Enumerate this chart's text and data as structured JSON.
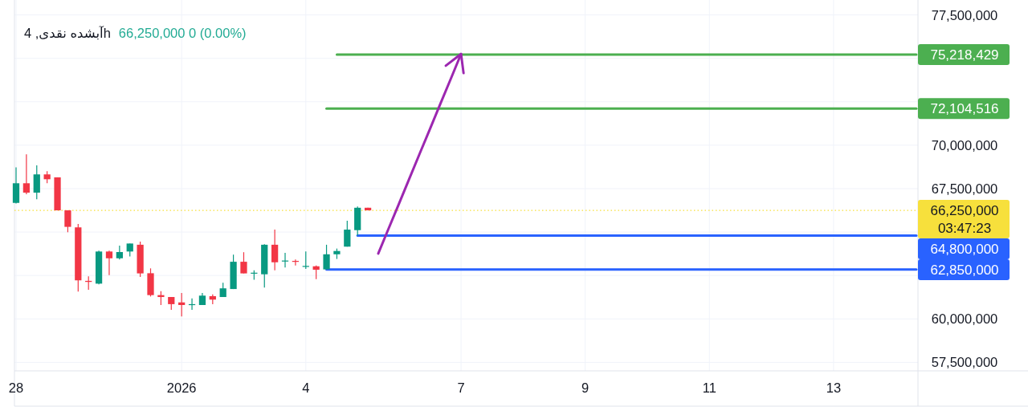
{
  "chart_data": {
    "type": "candlestick",
    "title": "آبشده نقدی, 4h",
    "subtitle": "66,250,000 0 (0.00%)",
    "categories": [
      "28",
      null,
      null,
      null,
      null,
      null,
      null,
      null,
      null,
      null,
      null,
      null,
      null,
      null,
      null,
      null,
      "2026",
      null,
      null,
      null,
      null,
      null,
      null,
      null,
      null,
      null,
      null,
      null,
      "4",
      null,
      null,
      null,
      null,
      null,
      null,
      null,
      null,
      null,
      null,
      null,
      null,
      null,
      null,
      "7",
      null,
      null,
      null,
      null,
      null,
      null,
      null,
      null,
      null,
      null,
      null,
      "9",
      null,
      null,
      null,
      null,
      null,
      null,
      null,
      null,
      null,
      null,
      null,
      "11",
      null,
      null,
      null,
      null,
      null,
      null,
      null,
      null,
      null,
      null,
      null,
      "13",
      null,
      null,
      null,
      null,
      null,
      null,
      null,
      null
    ],
    "ohlc": [
      [
        66680000,
        68730000,
        66650000,
        67810000
      ],
      [
        67810000,
        69470000,
        67180000,
        67270000
      ],
      [
        67270000,
        68840000,
        66890000,
        68320000
      ],
      [
        68320000,
        68500000,
        67810000,
        68040000
      ],
      [
        68150000,
        68150000,
        66250000,
        66250000
      ],
      [
        66250000,
        66250000,
        64990000,
        65300000
      ],
      [
        65270000,
        65470000,
        61570000,
        62220000
      ],
      [
        62190000,
        62450000,
        61680000,
        62130000
      ],
      [
        62030000,
        63930000,
        61990000,
        63880000
      ],
      [
        63880000,
        63930000,
        62520000,
        63490000
      ],
      [
        63490000,
        64220000,
        63420000,
        63850000
      ],
      [
        63880000,
        64340000,
        63600000,
        64340000
      ],
      [
        64270000,
        64450000,
        62420000,
        62620000
      ],
      [
        62630000,
        62910000,
        61290000,
        61370000
      ],
      [
        61370000,
        61600000,
        60800000,
        61260000
      ],
      [
        61260000,
        61260000,
        60520000,
        60850000
      ],
      [
        60950000,
        61490000,
        60140000,
        60800000
      ],
      [
        60810000,
        61180000,
        60520000,
        60850000
      ],
      [
        60800000,
        61490000,
        60800000,
        61340000
      ],
      [
        61310000,
        61410000,
        60850000,
        61110000
      ],
      [
        61260000,
        62080000,
        61260000,
        61760000
      ],
      [
        61720000,
        63700000,
        61720000,
        63290000
      ],
      [
        63290000,
        63840000,
        62620000,
        62620000
      ],
      [
        62620000,
        62800000,
        62260000,
        62660000
      ],
      [
        62570000,
        64300000,
        61800000,
        64270000
      ],
      [
        64270000,
        65140000,
        62800000,
        63260000
      ],
      [
        63320000,
        63800000,
        62960000,
        63360000
      ],
      [
        63340000,
        63420000,
        63080000,
        63290000
      ],
      [
        63020000,
        63880000,
        62880000,
        63050000
      ],
      [
        63030000,
        63080000,
        62290000,
        62830000
      ],
      [
        62850000,
        64270000,
        62850000,
        63720000
      ],
      [
        63720000,
        64050000,
        63450000,
        63910000
      ],
      [
        64160000,
        65650000,
        64160000,
        65140000
      ],
      [
        65110000,
        66470000,
        64800000,
        66400000
      ],
      [
        66400000,
        66400000,
        66250000,
        66250000
      ],
      null,
      null,
      null,
      null,
      null,
      null,
      null,
      null,
      null,
      null,
      null,
      null,
      null,
      null,
      null,
      null,
      null,
      null,
      null,
      null,
      null,
      null,
      null,
      null,
      null,
      null,
      null,
      null,
      null,
      null,
      null,
      null,
      null,
      null,
      null,
      null,
      null,
      null,
      null,
      null,
      null,
      null,
      null,
      null,
      null,
      null,
      null,
      null,
      null,
      null,
      null,
      null,
      null
    ],
    "ylim": [
      57010000,
      78360000
    ],
    "yticks": [
      {
        "value": 57500000,
        "label": "57,500,000"
      },
      {
        "value": 60000000,
        "label": "60,000,000"
      },
      {
        "value": 62500000,
        "label": null
      },
      {
        "value": 65000000,
        "label": null
      },
      {
        "value": 67500000,
        "label": "67,500,000"
      },
      {
        "value": 70000000,
        "label": "70,000,000"
      },
      {
        "value": 72500000,
        "label": null
      },
      {
        "value": 75000000,
        "label": null
      },
      {
        "value": 77500000,
        "label": "77,500,000"
      }
    ],
    "grid": true,
    "ref_lines": [
      {
        "axis": "y",
        "value": 66250000,
        "label": "66,250,000",
        "color": "#f7e03c",
        "line_style": "dotted"
      }
    ],
    "annotations": [
      "03:47:23"
    ],
    "series": [
      {
        "type": "line",
        "color": "#4caf50",
        "values": [
          null,
          null,
          null,
          null,
          null,
          null,
          null,
          null,
          null,
          null,
          null,
          null,
          null,
          null,
          null,
          null,
          null,
          null,
          null,
          null,
          null,
          null,
          null,
          null,
          null,
          null,
          null,
          null,
          null,
          null,
          null,
          75218429,
          75218429,
          75218429,
          75218429,
          75218429,
          75218429,
          75218429,
          75218429,
          75218429,
          75218429,
          75218429,
          75218429,
          75218429,
          75218429,
          75218429,
          75218429,
          75218429,
          75218429,
          75218429,
          75218429,
          75218429,
          75218429,
          75218429,
          75218429,
          75218429,
          75218429,
          75218429,
          75218429,
          75218429,
          75218429,
          75218429,
          75218429,
          75218429,
          75218429,
          75218429,
          75218429,
          75218429,
          75218429,
          75218429,
          75218429,
          75218429,
          75218429,
          75218429,
          75218429,
          75218429,
          75218429,
          75218429,
          75218429,
          75218429,
          75218429,
          75218429,
          75218429,
          75218429,
          75218429,
          75218429,
          75218429,
          75218429
        ],
        "value_labels": [
          null,
          null,
          null,
          null,
          null,
          null,
          null,
          null,
          null,
          null,
          null,
          null,
          null,
          null,
          null,
          null,
          null,
          null,
          null,
          null,
          null,
          null,
          null,
          null,
          null,
          null,
          null,
          null,
          null,
          null,
          null,
          null,
          null,
          null,
          null,
          null,
          null,
          null,
          null,
          null,
          null,
          null,
          null,
          null,
          null,
          null,
          null,
          null,
          null,
          null,
          null,
          null,
          null,
          null,
          null,
          null,
          null,
          null,
          null,
          null,
          null,
          null,
          null,
          null,
          null,
          null,
          null,
          null,
          null,
          null,
          null,
          null,
          null,
          null,
          null,
          null,
          null,
          null,
          null,
          null,
          null,
          null,
          null,
          null,
          null,
          null,
          null,
          "75,218,429"
        ]
      },
      {
        "type": "line",
        "color": "#4caf50",
        "values": [
          null,
          null,
          null,
          null,
          null,
          null,
          null,
          null,
          null,
          null,
          null,
          null,
          null,
          null,
          null,
          null,
          null,
          null,
          null,
          null,
          null,
          null,
          null,
          null,
          null,
          null,
          null,
          null,
          null,
          null,
          72104516,
          72104516,
          72104516,
          72104516,
          72104516,
          72104516,
          72104516,
          72104516,
          72104516,
          72104516,
          72104516,
          72104516,
          72104516,
          72104516,
          72104516,
          72104516,
          72104516,
          72104516,
          72104516,
          72104516,
          72104516,
          72104516,
          72104516,
          72104516,
          72104516,
          72104516,
          72104516,
          72104516,
          72104516,
          72104516,
          72104516,
          72104516,
          72104516,
          72104516,
          72104516,
          72104516,
          72104516,
          72104516,
          72104516,
          72104516,
          72104516,
          72104516,
          72104516,
          72104516,
          72104516,
          72104516,
          72104516,
          72104516,
          72104516,
          72104516,
          72104516,
          72104516,
          72104516,
          72104516,
          72104516,
          72104516,
          72104516,
          72104516
        ],
        "value_labels": [
          null,
          null,
          null,
          null,
          null,
          null,
          null,
          null,
          null,
          null,
          null,
          null,
          null,
          null,
          null,
          null,
          null,
          null,
          null,
          null,
          null,
          null,
          null,
          null,
          null,
          null,
          null,
          null,
          null,
          null,
          null,
          null,
          null,
          null,
          null,
          null,
          null,
          null,
          null,
          null,
          null,
          null,
          null,
          null,
          null,
          null,
          null,
          null,
          null,
          null,
          null,
          null,
          null,
          null,
          null,
          null,
          null,
          null,
          null,
          null,
          null,
          null,
          null,
          null,
          null,
          null,
          null,
          null,
          null,
          null,
          null,
          null,
          null,
          null,
          null,
          null,
          null,
          null,
          null,
          null,
          null,
          null,
          null,
          null,
          null,
          null,
          null,
          "72,104,516"
        ]
      },
      {
        "type": "line",
        "color": "#2962ff",
        "values": [
          null,
          null,
          null,
          null,
          null,
          null,
          null,
          null,
          null,
          null,
          null,
          null,
          null,
          null,
          null,
          null,
          null,
          null,
          null,
          null,
          null,
          null,
          null,
          null,
          null,
          null,
          null,
          null,
          null,
          null,
          null,
          null,
          null,
          64800000,
          64800000,
          64800000,
          64800000,
          64800000,
          64800000,
          64800000,
          64800000,
          64800000,
          64800000,
          64800000,
          64800000,
          64800000,
          64800000,
          64800000,
          64800000,
          64800000,
          64800000,
          64800000,
          64800000,
          64800000,
          64800000,
          64800000,
          64800000,
          64800000,
          64800000,
          64800000,
          64800000,
          64800000,
          64800000,
          64800000,
          64800000,
          64800000,
          64800000,
          64800000,
          64800000,
          64800000,
          64800000,
          64800000,
          64800000,
          64800000,
          64800000,
          64800000,
          64800000,
          64800000,
          64800000,
          64800000,
          64800000,
          64800000,
          64800000,
          64800000,
          64800000,
          64800000,
          64800000,
          64800000
        ],
        "value_labels": [
          null,
          null,
          null,
          null,
          null,
          null,
          null,
          null,
          null,
          null,
          null,
          null,
          null,
          null,
          null,
          null,
          null,
          null,
          null,
          null,
          null,
          null,
          null,
          null,
          null,
          null,
          null,
          null,
          null,
          null,
          null,
          null,
          null,
          null,
          null,
          null,
          null,
          null,
          null,
          null,
          null,
          null,
          null,
          null,
          null,
          null,
          null,
          null,
          null,
          null,
          null,
          null,
          null,
          null,
          null,
          null,
          null,
          null,
          null,
          null,
          null,
          null,
          null,
          null,
          null,
          null,
          null,
          null,
          null,
          null,
          null,
          null,
          null,
          null,
          null,
          null,
          null,
          null,
          null,
          null,
          null,
          null,
          null,
          null,
          null,
          null,
          null,
          "64,800,000"
        ]
      },
      {
        "type": "line",
        "color": "#2962ff",
        "values": [
          null,
          null,
          null,
          null,
          null,
          null,
          null,
          null,
          null,
          null,
          null,
          null,
          null,
          null,
          null,
          null,
          null,
          null,
          null,
          null,
          null,
          null,
          null,
          null,
          null,
          null,
          null,
          null,
          null,
          null,
          62850000,
          62850000,
          62850000,
          62850000,
          62850000,
          62850000,
          62850000,
          62850000,
          62850000,
          62850000,
          62850000,
          62850000,
          62850000,
          62850000,
          62850000,
          62850000,
          62850000,
          62850000,
          62850000,
          62850000,
          62850000,
          62850000,
          62850000,
          62850000,
          62850000,
          62850000,
          62850000,
          62850000,
          62850000,
          62850000,
          62850000,
          62850000,
          62850000,
          62850000,
          62850000,
          62850000,
          62850000,
          62850000,
          62850000,
          62850000,
          62850000,
          62850000,
          62850000,
          62850000,
          62850000,
          62850000,
          62850000,
          62850000,
          62850000,
          62850000,
          62850000,
          62850000,
          62850000,
          62850000,
          62850000,
          62850000,
          62850000,
          62850000
        ],
        "value_labels": [
          null,
          null,
          null,
          null,
          null,
          null,
          null,
          null,
          null,
          null,
          null,
          null,
          null,
          null,
          null,
          null,
          null,
          null,
          null,
          null,
          null,
          null,
          null,
          null,
          null,
          null,
          null,
          null,
          null,
          null,
          null,
          null,
          null,
          null,
          null,
          null,
          null,
          null,
          null,
          null,
          null,
          null,
          null,
          null,
          null,
          null,
          null,
          null,
          null,
          null,
          null,
          null,
          null,
          null,
          null,
          null,
          null,
          null,
          null,
          null,
          null,
          null,
          null,
          null,
          null,
          null,
          null,
          null,
          null,
          null,
          null,
          null,
          null,
          null,
          null,
          null,
          null,
          null,
          null,
          null,
          null,
          null,
          null,
          null,
          null,
          null,
          null,
          "62,850,000"
        ]
      },
      {
        "type": "line",
        "color": "#9c27b0",
        "values": [
          null,
          null,
          null,
          null,
          null,
          null,
          null,
          null,
          null,
          null,
          null,
          null,
          null,
          null,
          null,
          null,
          null,
          null,
          null,
          null,
          null,
          null,
          null,
          null,
          null,
          null,
          null,
          null,
          null,
          null,
          null,
          null,
          null,
          null,
          null,
          63760000,
          65200000,
          66630000,
          68070000,
          69510000,
          70940000,
          72380000,
          73810000,
          75250000,
          null,
          null,
          null,
          null,
          null,
          null,
          null,
          null,
          null,
          null,
          null,
          null,
          null,
          null,
          null,
          null,
          null,
          null,
          null,
          null,
          null,
          null,
          null,
          null,
          null,
          null,
          null,
          null,
          null,
          null,
          null,
          null,
          null,
          null,
          null,
          null,
          null,
          null,
          null,
          null,
          null,
          null,
          null,
          null
        ]
      }
    ]
  }
}
